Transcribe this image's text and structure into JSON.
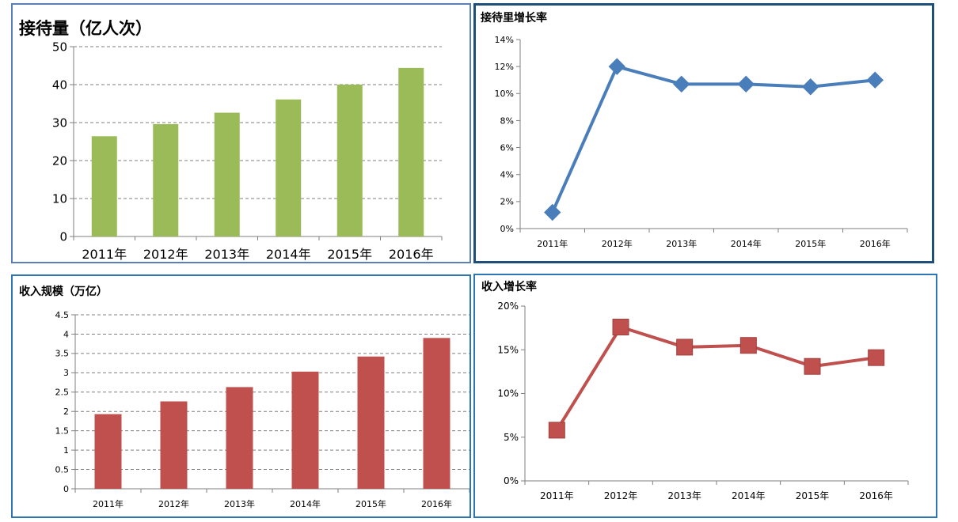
{
  "chart_data": [
    {
      "type": "bar",
      "title": "接待量（亿人次）",
      "categories": [
        "2011年",
        "2012年",
        "2013年",
        "2014年",
        "2015年",
        "2016年"
      ],
      "values": [
        26.4,
        29.6,
        32.6,
        36.1,
        40.0,
        44.4
      ],
      "ylim": [
        0,
        50
      ],
      "yticks": [
        "0",
        "10",
        "20",
        "30",
        "40",
        "50"
      ],
      "grid": true,
      "color": "#9bbb59"
    },
    {
      "type": "line",
      "title": "接待里增长率",
      "categories": [
        "2011年",
        "2012年",
        "2013年",
        "2014年",
        "2015年",
        "2016年"
      ],
      "values": [
        1.2,
        12.0,
        10.7,
        10.7,
        10.5,
        11.0
      ],
      "ylim": [
        0,
        14
      ],
      "yticks": [
        "0%",
        "2%",
        "4%",
        "6%",
        "8%",
        "10%",
        "12%",
        "14%"
      ],
      "grid": false,
      "color": "#4a7ebb",
      "marker": "diamond"
    },
    {
      "type": "bar",
      "title": "收入规模（万亿）",
      "categories": [
        "2011年",
        "2012年",
        "2013年",
        "2014年",
        "2015年",
        "2016年"
      ],
      "values": [
        1.93,
        2.26,
        2.63,
        3.03,
        3.42,
        3.9
      ],
      "ylim": [
        0,
        4.5
      ],
      "yticks": [
        "0",
        "0.5",
        "1",
        "1.5",
        "2",
        "2.5",
        "3",
        "3.5",
        "4",
        "4.5"
      ],
      "grid": true,
      "color": "#c0504d"
    },
    {
      "type": "line",
      "title": "收入增长率",
      "categories": [
        "2011年",
        "2012年",
        "2013年",
        "2014年",
        "2015年",
        "2016年"
      ],
      "values": [
        5.8,
        17.6,
        15.3,
        15.5,
        13.1,
        14.1
      ],
      "ylim": [
        0,
        20
      ],
      "yticks": [
        "0%",
        "5%",
        "10%",
        "15%",
        "20%"
      ],
      "grid": false,
      "color": "#c0504d",
      "marker": "square"
    }
  ]
}
